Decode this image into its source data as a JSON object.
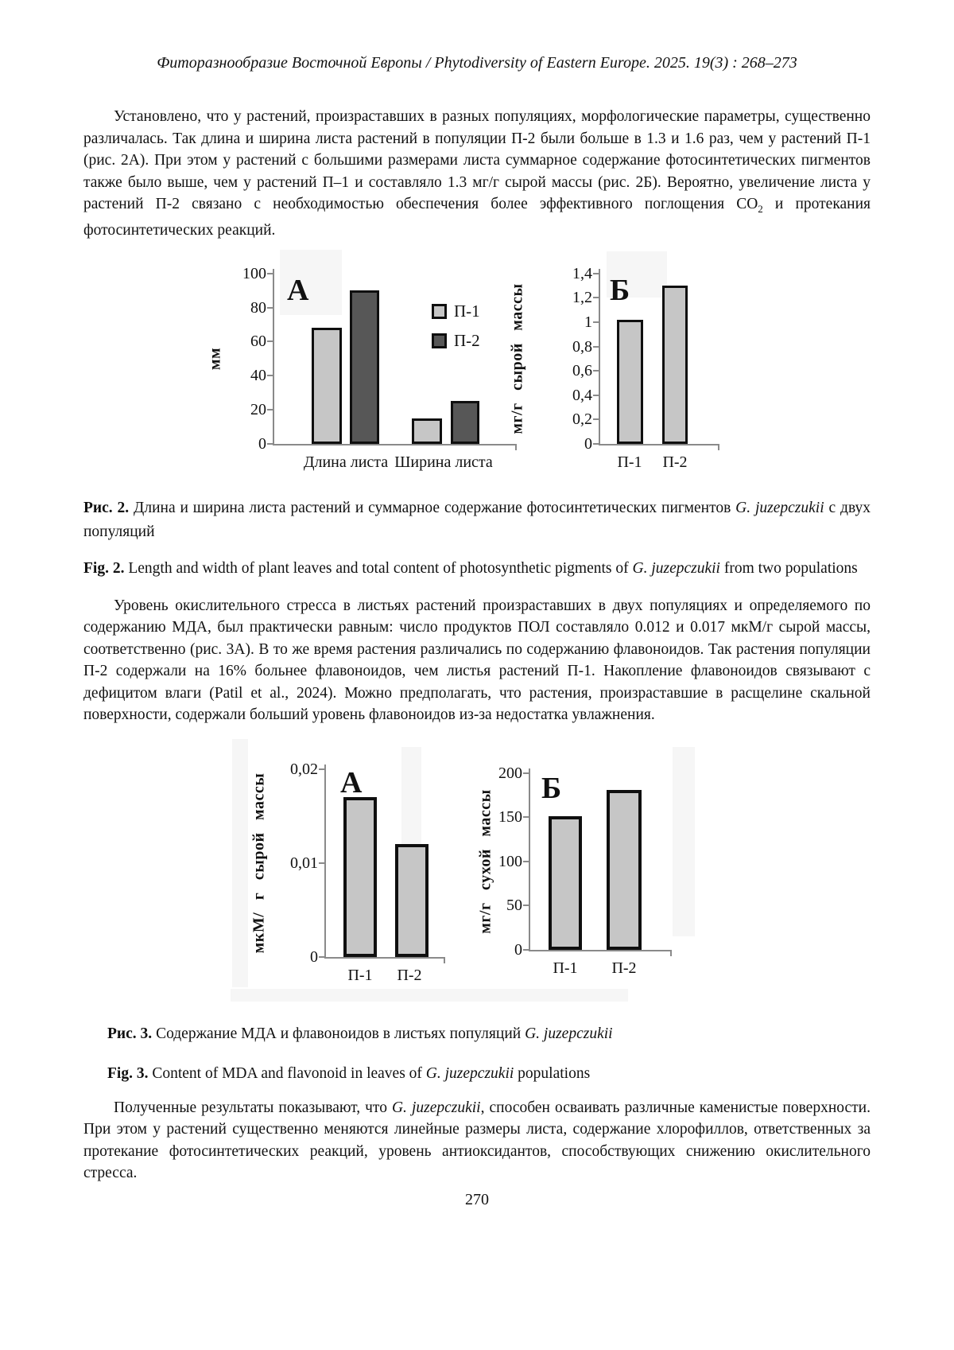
{
  "page": {
    "header": "Фиторазнообразие Восточной Европы / Phytodiversity of Eastern Europe. 2025. 19(3) : 268–273",
    "page_number": "270"
  },
  "paragraphs": {
    "p1": {
      "before_co2": "Установлено, что у растений, произраставших в разных популяциях, морфологические параметры, существенно различалась. Так длина и ширина листа растений в популяции П-2 были больше в 1.3 и 1.6 раз, чем у растений П-1 (рис. 2А). При этом у растений с большими размерами листа суммарное содержание фотосинтетических пигментов также было выше, чем у растений П–1 и составляло 1.3 мг/г сырой массы (рис. 2Б). Вероятно, увеличение листа у растений П-2 связано с необходимостью обеспечения более эффективного поглощения ",
      "co2_base": "CO",
      "co2_sub": "2",
      "after_co2": " и протекания фотосинтетических реакций."
    },
    "p2": {
      "text": "Уровень окислительного стресса в листьях растений произраставших в двух популяциях  и определяемого по содержанию МДА, был практически равным: число продуктов ПОЛ составляло 0.012 и 0.017 мкМ/г сырой массы, соответственно (рис. 3А). В то же время растения различались по содержанию флавоноидов. Так растения популяции П-2 содержали на 16% больнее флавоноидов, чем листья растений П-1. Накопление флавоноидов связывают с дефицитом влаги (Patil et al., 2024). Можно предполагать, что растения, произраставшие в расщелине скальной поверхности, содержали больший уровень флавоноидов из-за недостатка увлажнения."
    },
    "p3": {
      "before_italic": "Полученные результаты показывают, что ",
      "italic": "G. juzepczukii",
      "after_italic": ", способен осваивать различные каменистые поверхности. При этом у растений существенно меняются линейные размеры листа, содержание хлорофиллов, ответственных за протекание фотосинтетических реакций, уровень антиоксидантов, способствующих снижению окислительного стресса."
    }
  },
  "captions": {
    "fig2_ru": {
      "label": "Рис. 2.",
      "before": " Длина и ширина листа растений и суммарное содержание фотосинтетических пигментов ",
      "italic": "G. juzepczukii",
      "after": " с двух популяций"
    },
    "fig2_en": {
      "label": "Fig. 2.",
      "before": " Length and width of plant leaves and total content of photosynthetic pigments of ",
      "italic": "G. juzepczukii",
      "after": " from two populations"
    },
    "fig3_ru": {
      "label": "Рис. 3.",
      "before": " Содержание МДА и флавоноидов в листьях популяций ",
      "italic": "G. juzepczukii",
      "after": ""
    },
    "fig3_en": {
      "label": "Fig. 3.",
      "before": " Content of MDA and flavonoid in leaves of ",
      "italic": "G. juzepczukii",
      "after": " populations"
    }
  },
  "chart_data": [
    {
      "id": "fig2a",
      "type": "bar",
      "panel_label": "А",
      "title": "Длина и ширина листа растений двух популяций",
      "ylabel": "мм",
      "xlabel": "",
      "ymax": 100,
      "ylim": [
        0,
        100
      ],
      "ytick_values": [
        100,
        80,
        60,
        40,
        20,
        0
      ],
      "ytick_labels": [
        "100",
        "80",
        "60",
        "40",
        "20",
        "0"
      ],
      "categories": [
        "Длина листа",
        "Ширина листа"
      ],
      "series": [
        {
          "name": "П-1",
          "color": "#c6c6c6",
          "values": [
            68,
            15
          ]
        },
        {
          "name": "П-2",
          "color": "#575757",
          "values": [
            90,
            25
          ]
        }
      ],
      "legend": true,
      "legend_position": "right",
      "grid": false
    },
    {
      "id": "fig2b",
      "type": "bar",
      "panel_label": "Б",
      "title": "Суммарное содержание фотосинтетических пигментов",
      "ylabel": "мг/г сырой массы",
      "xlabel": "",
      "ymax": 1.4,
      "ylim": [
        0,
        1.4
      ],
      "ytick_values": [
        1.4,
        1.2,
        1.0,
        0.8,
        0.6,
        0.4,
        0.2,
        0
      ],
      "ytick_labels": [
        "1,4",
        "1,2",
        "1",
        "0,8",
        "0,6",
        "0,4",
        "0,2",
        "0"
      ],
      "categories": [
        "П-1",
        "П-2"
      ],
      "series": [
        {
          "name": "",
          "color": "#c6c6c6",
          "values": [
            1.02,
            1.3
          ]
        }
      ],
      "legend": false,
      "grid": false
    },
    {
      "id": "fig3a",
      "type": "bar",
      "panel_label": "А",
      "title": "Содержание МДА",
      "ylabel": "мкМ/ г сырой массы",
      "xlabel": "",
      "ymax": 0.02,
      "ylim": [
        0,
        0.02
      ],
      "ytick_values": [
        0.02,
        0.01,
        0
      ],
      "ytick_labels": [
        "0,02",
        "0,01",
        "0"
      ],
      "categories": [
        "П-1",
        "П-2"
      ],
      "series": [
        {
          "name": "",
          "color": "#c6c6c6",
          "values": [
            0.017,
            0.012
          ]
        }
      ],
      "legend": false,
      "grid": false
    },
    {
      "id": "fig3b",
      "type": "bar",
      "panel_label": "Б",
      "title": "Содержание флавоноидов",
      "ylabel": "мг/г сухой массы",
      "xlabel": "",
      "ymax": 200,
      "ylim": [
        0,
        200
      ],
      "ytick_values": [
        200,
        150,
        100,
        50,
        0
      ],
      "ytick_labels": [
        "200",
        "150",
        "100",
        "50",
        "0"
      ],
      "categories": [
        "П-1",
        "П-2"
      ],
      "series": [
        {
          "name": "",
          "color": "#c6c6c6",
          "values": [
            151,
            181
          ]
        }
      ],
      "legend": false,
      "grid": false
    }
  ],
  "colors": {
    "bar_light": "#c6c6c6",
    "bar_dark": "#575757",
    "axis": "#8a8a8a",
    "bar_border": "#0f0f0f",
    "text": "#111111"
  }
}
